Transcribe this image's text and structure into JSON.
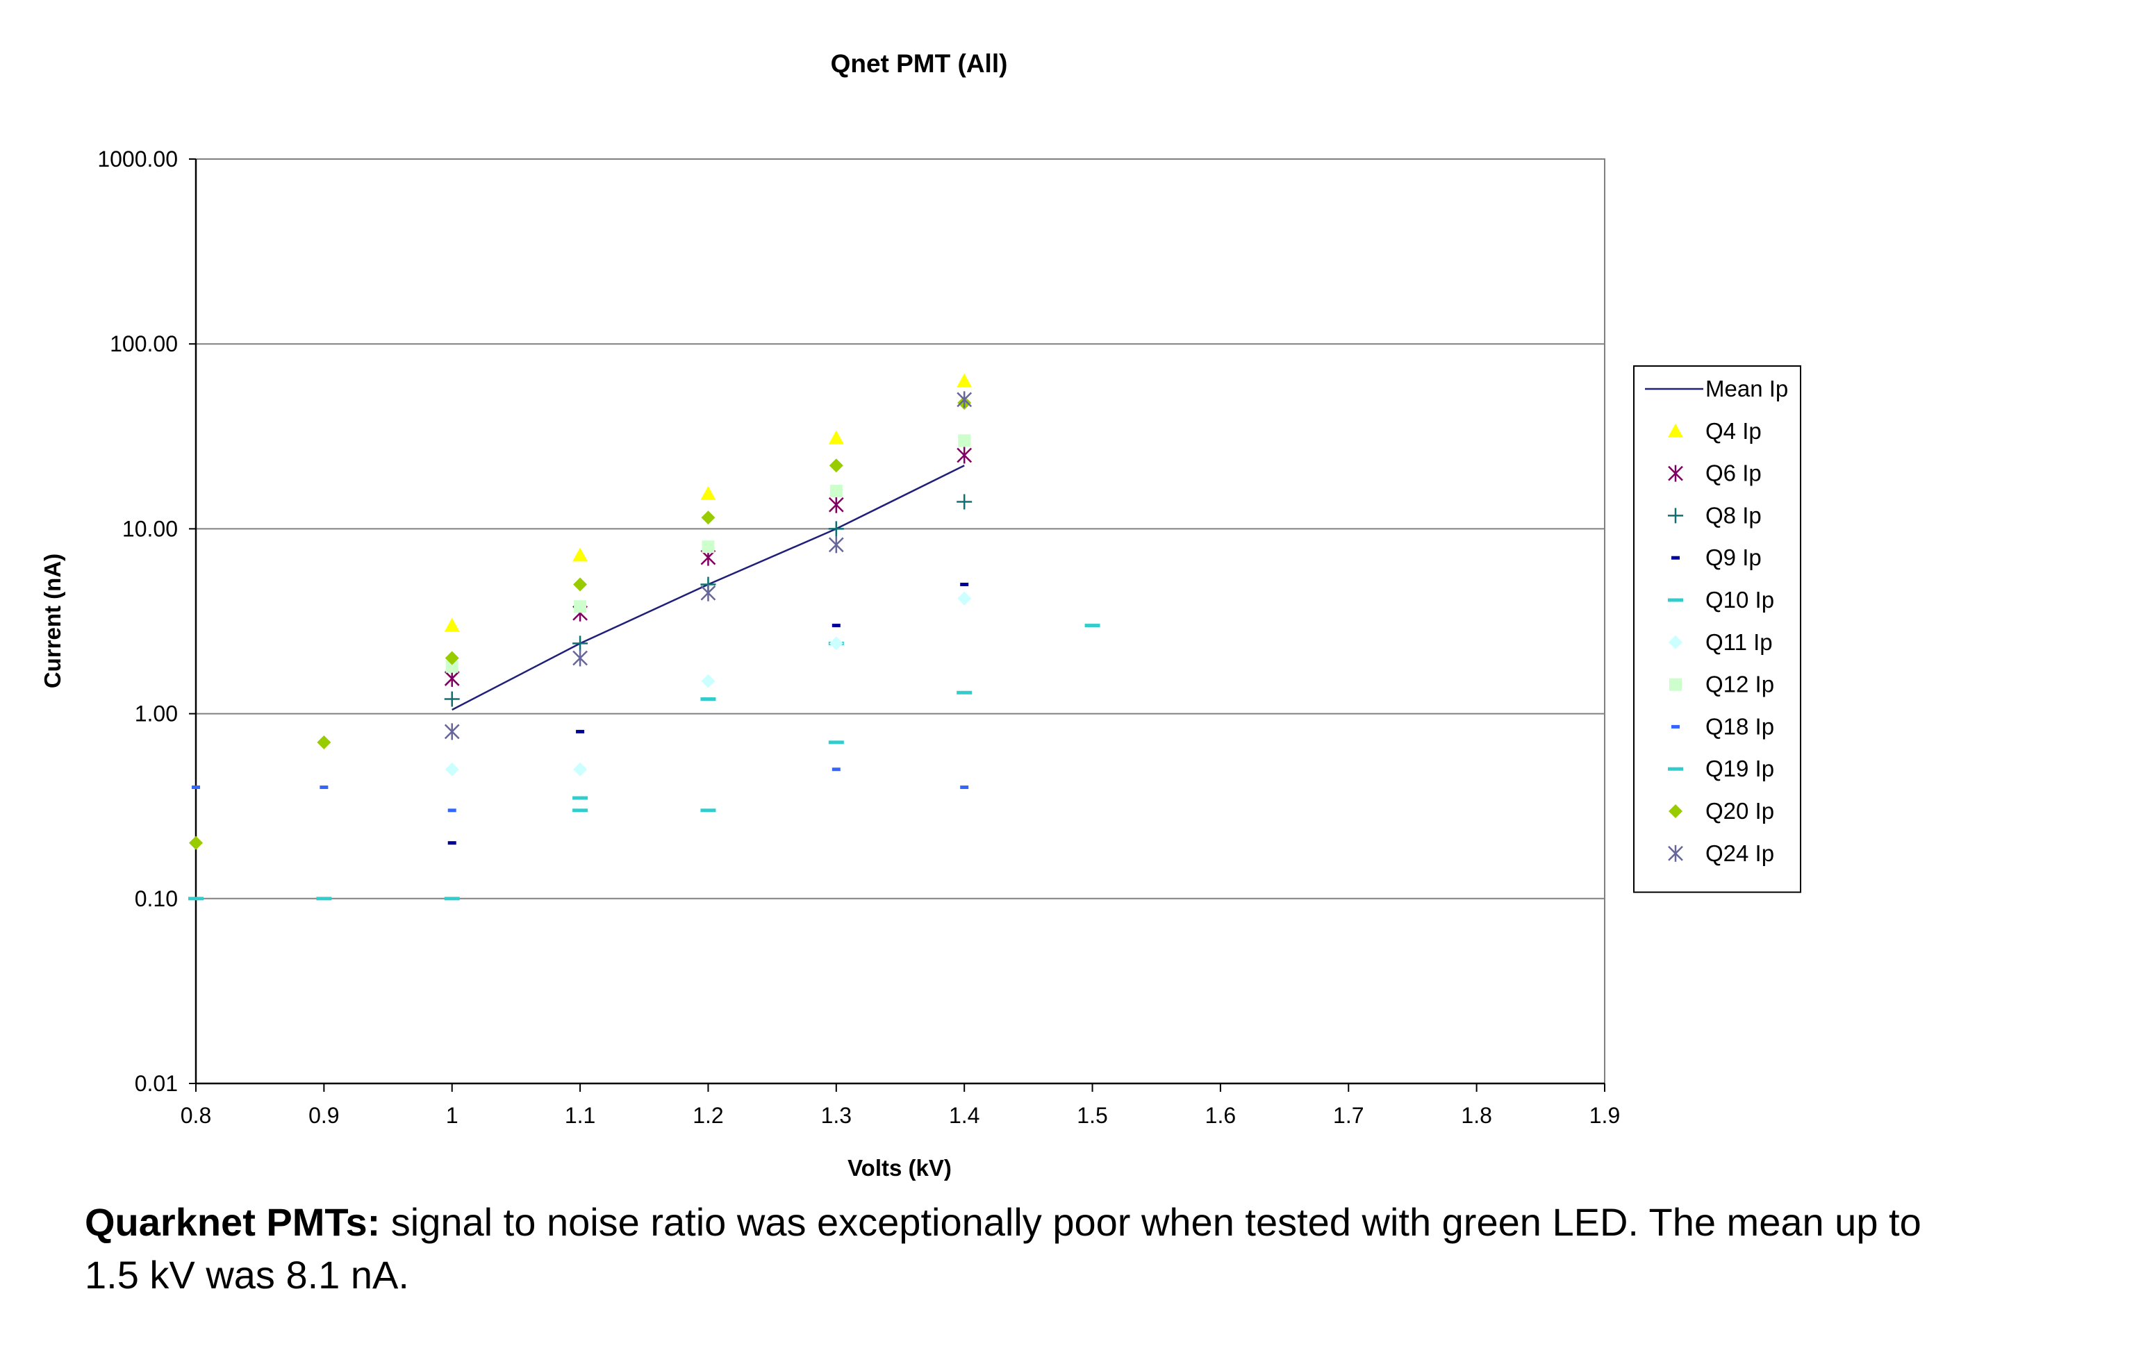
{
  "chart_data": {
    "type": "scatter",
    "title": "Qnet PMT (All)",
    "xlabel": "Volts (kV)",
    "ylabel": "Current (nA)",
    "xlim": [
      0.8,
      1.9
    ],
    "ylim": [
      0.01,
      1000
    ],
    "yscale": "log",
    "grid": "horizontal major lines",
    "legend_position": "right",
    "xticks": [
      "0.8",
      "0.9",
      "1",
      "1.1",
      "1.2",
      "1.3",
      "1.4",
      "1.5",
      "1.6",
      "1.7",
      "1.8",
      "1.9"
    ],
    "yticks": [
      "0.01",
      "0.10",
      "1.00",
      "10.00",
      "100.00",
      "1000.00"
    ],
    "series": [
      {
        "name": "Mean Ip",
        "marker": "line",
        "color": "#1f1f7a",
        "points": [
          [
            1.0,
            1.05
          ],
          [
            1.1,
            2.4
          ],
          [
            1.2,
            5.0
          ],
          [
            1.3,
            10.0
          ],
          [
            1.4,
            22.0
          ]
        ]
      },
      {
        "name": "Q4 Ip",
        "marker": "triangle",
        "color": "#ffff00",
        "points": [
          [
            1.0,
            3.0
          ],
          [
            1.1,
            7.2
          ],
          [
            1.2,
            15.5
          ],
          [
            1.3,
            31.0
          ],
          [
            1.4,
            63.0
          ]
        ]
      },
      {
        "name": "Q6 Ip",
        "marker": "x-star",
        "color": "#800060",
        "points": [
          [
            1.0,
            1.55
          ],
          [
            1.1,
            3.5
          ],
          [
            1.2,
            7.0
          ],
          [
            1.3,
            13.5
          ],
          [
            1.4,
            25.0
          ]
        ]
      },
      {
        "name": "Q8 Ip",
        "marker": "plus",
        "color": "#0e7070",
        "points": [
          [
            1.0,
            1.2
          ],
          [
            1.1,
            2.4
          ],
          [
            1.2,
            5.0
          ],
          [
            1.3,
            10.0
          ],
          [
            1.4,
            14.0
          ]
        ]
      },
      {
        "name": "Q9 Ip",
        "marker": "dash",
        "color": "#00009a",
        "points": [
          [
            1.0,
            0.2
          ],
          [
            1.1,
            0.8
          ],
          [
            1.2,
            1.5
          ],
          [
            1.3,
            3.0
          ],
          [
            1.4,
            5.0
          ]
        ]
      },
      {
        "name": "Q10 Ip",
        "marker": "dash-wide",
        "color": "#33cccc",
        "points": [
          [
            0.8,
            0.1
          ],
          [
            0.9,
            0.1
          ],
          [
            1.0,
            0.1
          ],
          [
            1.1,
            0.35
          ],
          [
            1.2,
            1.2
          ],
          [
            1.3,
            2.4
          ],
          [
            1.4,
            1.3
          ],
          [
            1.5,
            3.0
          ]
        ]
      },
      {
        "name": "Q11 Ip",
        "marker": "diamond",
        "color": "#ccffff",
        "points": [
          [
            1.0,
            0.5
          ],
          [
            1.1,
            0.5
          ],
          [
            1.2,
            1.5
          ],
          [
            1.3,
            2.4
          ],
          [
            1.4,
            4.2
          ]
        ]
      },
      {
        "name": "Q12 Ip",
        "marker": "square",
        "color": "#ccffcc",
        "points": [
          [
            1.0,
            1.8
          ],
          [
            1.1,
            3.8
          ],
          [
            1.2,
            8.0
          ],
          [
            1.3,
            16.0
          ],
          [
            1.4,
            30.0
          ]
        ]
      },
      {
        "name": "Q18 Ip",
        "marker": "dash",
        "color": "#3366ff",
        "points": [
          [
            0.8,
            0.4
          ],
          [
            0.9,
            0.4
          ],
          [
            1.0,
            0.3
          ],
          [
            1.3,
            0.5
          ],
          [
            1.4,
            0.4
          ]
        ]
      },
      {
        "name": "Q19 Ip",
        "marker": "dash-wide",
        "color": "#33cccc",
        "points": [
          [
            1.1,
            0.3
          ],
          [
            1.2,
            0.3
          ],
          [
            1.3,
            0.7
          ]
        ]
      },
      {
        "name": "Q20 Ip",
        "marker": "diamond",
        "color": "#99cc00",
        "points": [
          [
            0.8,
            0.2
          ],
          [
            0.9,
            0.7
          ],
          [
            1.0,
            2.0
          ],
          [
            1.1,
            5.0
          ],
          [
            1.2,
            11.5
          ],
          [
            1.3,
            22.0
          ],
          [
            1.4,
            48.0
          ]
        ]
      },
      {
        "name": "Q24 Ip",
        "marker": "x-star",
        "color": "#666699",
        "points": [
          [
            1.0,
            0.8
          ],
          [
            1.1,
            2.0
          ],
          [
            1.2,
            4.5
          ],
          [
            1.3,
            8.2
          ],
          [
            1.4,
            50.0
          ]
        ]
      }
    ]
  },
  "caption": {
    "bold": "Quarknet PMTs:",
    "text": " signal to noise ratio was exceptionally poor when tested with green LED. The mean up to 1.5 kV was 8.1 nA."
  }
}
